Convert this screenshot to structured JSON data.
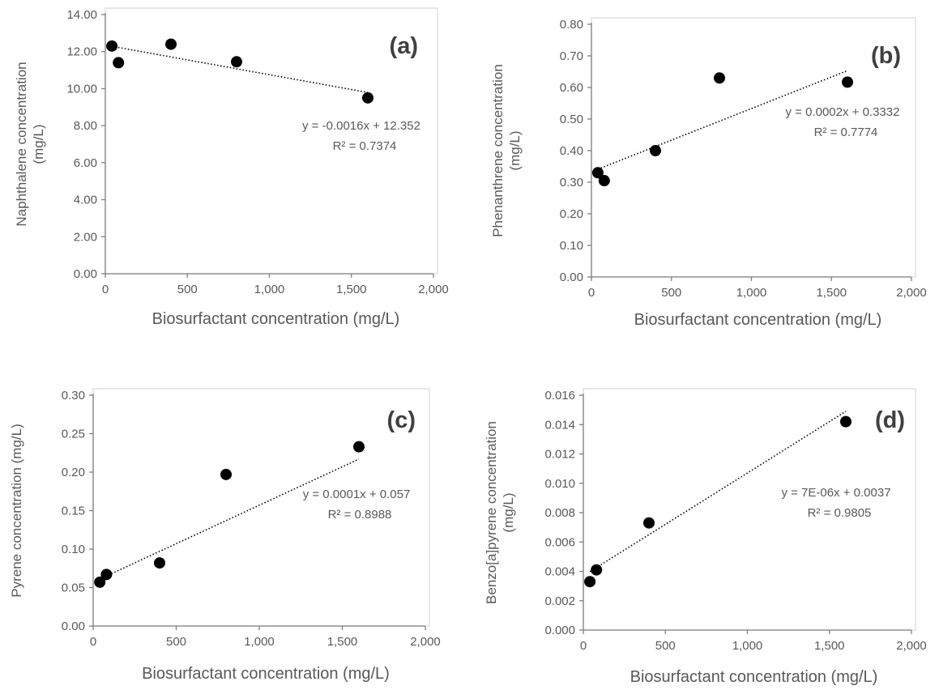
{
  "chart_data": [
    {
      "type": "scatter",
      "panel_label": "(a)",
      "xlabel": "Biosurfactant concentration (mg/L)",
      "ylabel": [
        "Naphthalene concentration",
        "(mg/L)"
      ],
      "xlim": [
        0,
        2000
      ],
      "ylim": [
        0,
        14
      ],
      "x_ticks": [
        "0",
        "500",
        "1,000",
        "1,500",
        "2,000"
      ],
      "y_ticks": [
        "0.00",
        "2.00",
        "4.00",
        "6.00",
        "8.00",
        "10.00",
        "12.00",
        "14.00"
      ],
      "x": [
        40,
        80,
        400,
        800,
        1600
      ],
      "y": [
        12.3,
        11.4,
        12.4,
        11.45,
        9.5
      ],
      "trendline": {
        "slope": -0.0016,
        "intercept": 12.352,
        "x_range": [
          40,
          1600
        ]
      },
      "equation": "y = -0.0016x + 12.352",
      "r_squared": "R² = 0.7374",
      "grid": false
    },
    {
      "type": "scatter",
      "panel_label": "(b)",
      "xlabel": "Biosurfactant concentration (mg/L)",
      "ylabel": [
        "Phenanthrene concentration",
        "(mg/L)"
      ],
      "xlim": [
        0,
        2000
      ],
      "ylim": [
        0,
        0.8
      ],
      "x_ticks": [
        "0",
        "500",
        "1,000",
        "1,500",
        "2,000"
      ],
      "y_ticks": [
        "0.00",
        "0.10",
        "0.20",
        "0.30",
        "0.40",
        "0.50",
        "0.60",
        "0.70",
        "0.80"
      ],
      "x": [
        40,
        80,
        400,
        800,
        1600
      ],
      "y": [
        0.33,
        0.305,
        0.4,
        0.63,
        0.617
      ],
      "trendline": {
        "slope": 0.0002,
        "intercept": 0.3332,
        "x_range": [
          40,
          1600
        ]
      },
      "equation": "y = 0.0002x + 0.3332",
      "r_squared": "R² = 0.7774",
      "grid": false
    },
    {
      "type": "scatter",
      "panel_label": "(c)",
      "xlabel": "Biosurfactant concentration (mg/L)",
      "ylabel": [
        "Pyrene concentration (mg/L)"
      ],
      "xlim": [
        0,
        2000
      ],
      "ylim": [
        0,
        0.3
      ],
      "x_ticks": [
        "0",
        "500",
        "1,000",
        "1,500",
        "2,000"
      ],
      "y_ticks": [
        "0.00",
        "0.05",
        "0.10",
        "0.15",
        "0.20",
        "0.25",
        "0.30"
      ],
      "x": [
        40,
        80,
        400,
        800,
        1600
      ],
      "y": [
        0.057,
        0.067,
        0.082,
        0.197,
        0.233
      ],
      "trendline": {
        "slope": 0.0001,
        "intercept": 0.057,
        "x_range": [
          40,
          1600
        ]
      },
      "equation": "y = 0.0001x + 0.057",
      "r_squared": "R² = 0.8988",
      "grid": false
    },
    {
      "type": "scatter",
      "panel_label": "(d)",
      "xlabel": "Biosurfactant concentration (mg/L)",
      "ylabel": [
        "Benzo[a]pyrene concentration",
        "(mg/L)"
      ],
      "xlim": [
        0,
        2000
      ],
      "ylim": [
        0,
        0.016
      ],
      "x_ticks": [
        "0",
        "500",
        "1,000",
        "1,500",
        "2,000"
      ],
      "y_ticks": [
        "0.000",
        "0.002",
        "0.004",
        "0.006",
        "0.008",
        "0.010",
        "0.012",
        "0.014",
        "0.016"
      ],
      "x": [
        40,
        80,
        400,
        1600
      ],
      "y": [
        0.0033,
        0.0041,
        0.0073,
        0.0142
      ],
      "trendline": {
        "slope": 7e-06,
        "intercept": 0.0037,
        "x_range": [
          40,
          1600
        ]
      },
      "equation": "y = 7E-06x + 0.0037",
      "r_squared": "R² = 0.9805",
      "grid": false
    }
  ]
}
